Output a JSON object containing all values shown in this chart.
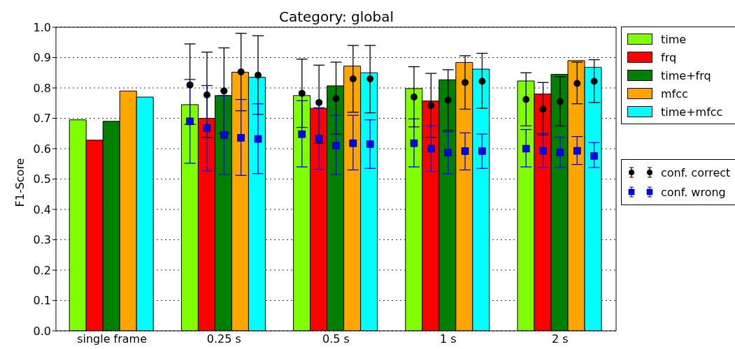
{
  "chart_data": {
    "type": "bar",
    "title": "Category: global",
    "ylabel": "F1-Score",
    "categories": [
      "single frame",
      "0.25 s",
      "0.5 s",
      "1 s",
      "2 s"
    ],
    "series": [
      {
        "name": "time",
        "color": "#7fff00",
        "values": [
          0.695,
          0.745,
          0.775,
          0.798,
          0.823
        ]
      },
      {
        "name": "frq",
        "color": "#ff0000",
        "values": [
          0.628,
          0.7,
          0.733,
          0.757,
          0.78
        ]
      },
      {
        "name": "time+frq",
        "color": "#008000",
        "values": [
          0.69,
          0.775,
          0.807,
          0.827,
          0.845
        ]
      },
      {
        "name": "mfcc",
        "color": "#ffa500",
        "values": [
          0.79,
          0.852,
          0.872,
          0.884,
          0.89
        ]
      },
      {
        "name": "time+mfcc",
        "color": "#00ffff",
        "values": [
          0.77,
          0.835,
          0.85,
          0.862,
          0.868
        ]
      },
      {
        "name": "conf. correct",
        "type": "scatter",
        "marker": "circle",
        "color": "#000000",
        "x": [
          "0.25 s",
          "0.25 s",
          "0.25 s",
          "0.25 s",
          "0.25 s",
          "0.5 s",
          "0.5 s",
          "0.5 s",
          "0.5 s",
          "0.5 s",
          "1 s",
          "1 s",
          "1 s",
          "1 s",
          "1 s",
          "2 s",
          "2 s",
          "2 s",
          "2 s",
          "2 s"
        ],
        "values": [
          0.81,
          0.777,
          0.79,
          0.853,
          0.842,
          0.782,
          0.752,
          0.765,
          0.83,
          0.83,
          0.77,
          0.742,
          0.76,
          0.818,
          0.822,
          0.762,
          0.73,
          0.755,
          0.815,
          0.822
        ],
        "errors": [
          [
            0.68,
            0.945
          ],
          [
            0.637,
            0.918
          ],
          [
            0.65,
            0.932
          ],
          [
            0.725,
            0.98
          ],
          [
            0.713,
            0.972
          ],
          [
            0.67,
            0.895
          ],
          [
            0.618,
            0.875
          ],
          [
            0.648,
            0.885
          ],
          [
            0.72,
            0.94
          ],
          [
            0.718,
            0.94
          ],
          [
            0.672,
            0.87
          ],
          [
            0.637,
            0.848
          ],
          [
            0.66,
            0.86
          ],
          [
            0.73,
            0.906
          ],
          [
            0.733,
            0.914
          ],
          [
            0.675,
            0.85
          ],
          [
            0.645,
            0.818
          ],
          [
            0.675,
            0.837
          ],
          [
            0.748,
            0.885
          ],
          [
            0.752,
            0.893
          ]
        ]
      },
      {
        "name": "conf. wrong",
        "type": "scatter",
        "marker": "square",
        "color": "#0000ff",
        "x": [
          "0.25 s",
          "0.25 s",
          "0.25 s",
          "0.25 s",
          "0.25 s",
          "0.5 s",
          "0.5 s",
          "0.5 s",
          "0.5 s",
          "0.5 s",
          "1 s",
          "1 s",
          "1 s",
          "1 s",
          "1 s",
          "2 s",
          "2 s",
          "2 s",
          "2 s",
          "2 s"
        ],
        "values": [
          0.69,
          0.668,
          0.645,
          0.636,
          0.632,
          0.648,
          0.633,
          0.61,
          0.618,
          0.615,
          0.618,
          0.6,
          0.587,
          0.592,
          0.592,
          0.6,
          0.593,
          0.588,
          0.593,
          0.576
        ],
        "errors": [
          [
            0.552,
            0.828
          ],
          [
            0.527,
            0.808
          ],
          [
            0.515,
            0.775
          ],
          [
            0.512,
            0.762
          ],
          [
            0.518,
            0.748
          ],
          [
            0.54,
            0.758
          ],
          [
            0.532,
            0.735
          ],
          [
            0.515,
            0.71
          ],
          [
            0.53,
            0.71
          ],
          [
            0.535,
            0.695
          ],
          [
            0.54,
            0.698
          ],
          [
            0.525,
            0.675
          ],
          [
            0.518,
            0.655
          ],
          [
            0.53,
            0.652
          ],
          [
            0.535,
            0.648
          ],
          [
            0.54,
            0.663
          ],
          [
            0.538,
            0.65
          ],
          [
            0.538,
            0.638
          ],
          [
            0.548,
            0.64
          ],
          [
            0.538,
            0.62
          ]
        ]
      }
    ],
    "ylim": [
      0,
      1
    ],
    "yticks": [
      {
        "value": 0,
        "label": "0.0"
      },
      0.1,
      0.2,
      0.3,
      0.4,
      0.5,
      0.6,
      0.7,
      0.8,
      0.9,
      {
        "value": 1,
        "label": "1.0"
      }
    ],
    "grid": "y",
    "legend": "top right"
  }
}
